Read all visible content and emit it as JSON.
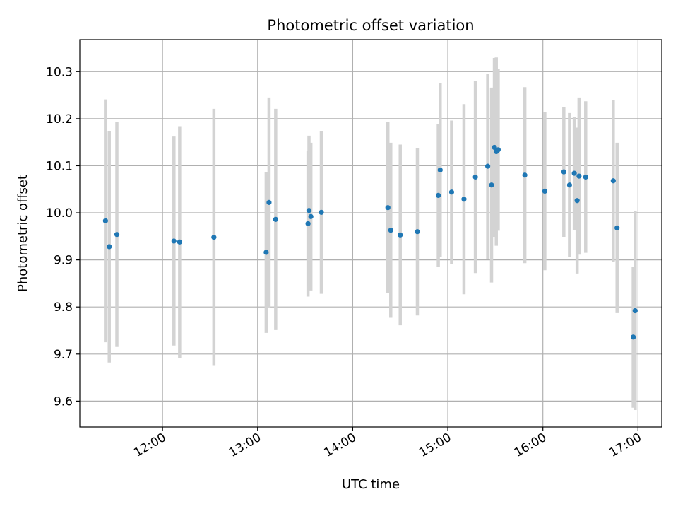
{
  "chart_data": {
    "type": "scatter",
    "title": "Photometric offset variation",
    "xlabel": "UTC time",
    "ylabel": "Photometric offset",
    "x_unit": "hours UTC",
    "xlim": [
      11.13,
      17.25
    ],
    "ylim": [
      9.545,
      10.368
    ],
    "x_ticks": [
      {
        "value": 12,
        "label": "12:00"
      },
      {
        "value": 13,
        "label": "13:00"
      },
      {
        "value": 14,
        "label": "14:00"
      },
      {
        "value": 15,
        "label": "15:00"
      },
      {
        "value": 16,
        "label": "16:00"
      },
      {
        "value": 17,
        "label": "17:00"
      }
    ],
    "y_ticks": [
      {
        "value": 9.6,
        "label": "9.6"
      },
      {
        "value": 9.7,
        "label": "9.7"
      },
      {
        "value": 9.8,
        "label": "9.8"
      },
      {
        "value": 9.9,
        "label": "9.9"
      },
      {
        "value": 10.0,
        "label": "10.0"
      },
      {
        "value": 10.1,
        "label": "10.1"
      },
      {
        "value": 10.2,
        "label": "10.2"
      },
      {
        "value": 10.3,
        "label": "10.3"
      }
    ],
    "grid": true,
    "point_color": "#1f77b4",
    "errorbar_color": "#d3d3d3",
    "points": [
      {
        "x": 11.4,
        "y": 9.983,
        "err": 0.258
      },
      {
        "x": 11.44,
        "y": 9.928,
        "err": 0.246
      },
      {
        "x": 11.52,
        "y": 9.954,
        "err": 0.239
      },
      {
        "x": 12.12,
        "y": 9.94,
        "err": 0.222
      },
      {
        "x": 12.18,
        "y": 9.938,
        "err": 0.246
      },
      {
        "x": 12.54,
        "y": 9.948,
        "err": 0.273
      },
      {
        "x": 13.09,
        "y": 9.916,
        "err": 0.171
      },
      {
        "x": 13.12,
        "y": 10.022,
        "err": 0.223
      },
      {
        "x": 13.19,
        "y": 9.986,
        "err": 0.235
      },
      {
        "x": 13.53,
        "y": 9.977,
        "err": 0.155
      },
      {
        "x": 13.54,
        "y": 10.005,
        "err": 0.159
      },
      {
        "x": 13.56,
        "y": 9.992,
        "err": 0.157
      },
      {
        "x": 13.67,
        "y": 10.001,
        "err": 0.173
      },
      {
        "x": 14.37,
        "y": 10.011,
        "err": 0.182
      },
      {
        "x": 14.4,
        "y": 9.963,
        "err": 0.186
      },
      {
        "x": 14.5,
        "y": 9.953,
        "err": 0.192
      },
      {
        "x": 14.68,
        "y": 9.96,
        "err": 0.178
      },
      {
        "x": 14.9,
        "y": 10.037,
        "err": 0.152
      },
      {
        "x": 14.92,
        "y": 10.091,
        "err": 0.184
      },
      {
        "x": 15.04,
        "y": 10.044,
        "err": 0.152
      },
      {
        "x": 15.17,
        "y": 10.029,
        "err": 0.202
      },
      {
        "x": 15.29,
        "y": 10.076,
        "err": 0.204
      },
      {
        "x": 15.42,
        "y": 10.099,
        "err": 0.197
      },
      {
        "x": 15.46,
        "y": 10.059,
        "err": 0.207
      },
      {
        "x": 15.49,
        "y": 10.139,
        "err": 0.19
      },
      {
        "x": 15.51,
        "y": 10.13,
        "err": 0.2
      },
      {
        "x": 15.53,
        "y": 10.134,
        "err": 0.172
      },
      {
        "x": 15.81,
        "y": 10.08,
        "err": 0.187
      },
      {
        "x": 16.02,
        "y": 10.046,
        "err": 0.168
      },
      {
        "x": 16.22,
        "y": 10.087,
        "err": 0.138
      },
      {
        "x": 16.28,
        "y": 10.059,
        "err": 0.153
      },
      {
        "x": 16.33,
        "y": 10.084,
        "err": 0.12
      },
      {
        "x": 16.36,
        "y": 10.026,
        "err": 0.155
      },
      {
        "x": 16.38,
        "y": 10.078,
        "err": 0.167
      },
      {
        "x": 16.45,
        "y": 10.076,
        "err": 0.161
      },
      {
        "x": 16.74,
        "y": 10.068,
        "err": 0.172
      },
      {
        "x": 16.78,
        "y": 9.968,
        "err": 0.181
      },
      {
        "x": 16.95,
        "y": 9.736,
        "err": 0.15
      },
      {
        "x": 16.97,
        "y": 9.792,
        "err": 0.211
      }
    ]
  }
}
